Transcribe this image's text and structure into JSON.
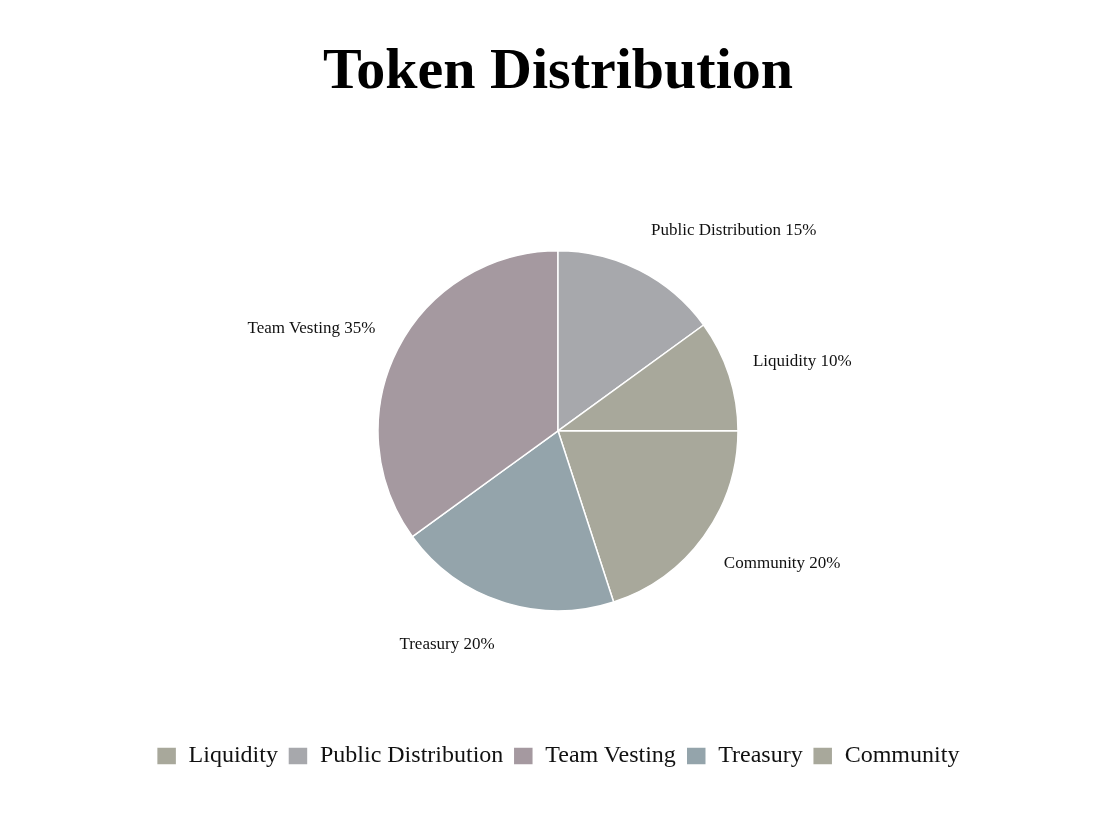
{
  "chart_data": {
    "type": "pie",
    "title": "Token Distribution",
    "categories": [
      "Liquidity",
      "Public Distribution",
      "Team Vesting",
      "Treasury",
      "Community"
    ],
    "values": [
      10,
      15,
      35,
      20,
      20
    ],
    "value_labels": [
      "10%",
      "15%",
      "35%",
      "20%",
      "20%"
    ],
    "colors": [
      "#a8a89b",
      "#a7a8ac",
      "#a599a0",
      "#94a4ab",
      "#a8a89b"
    ],
    "legend": "bottom"
  }
}
